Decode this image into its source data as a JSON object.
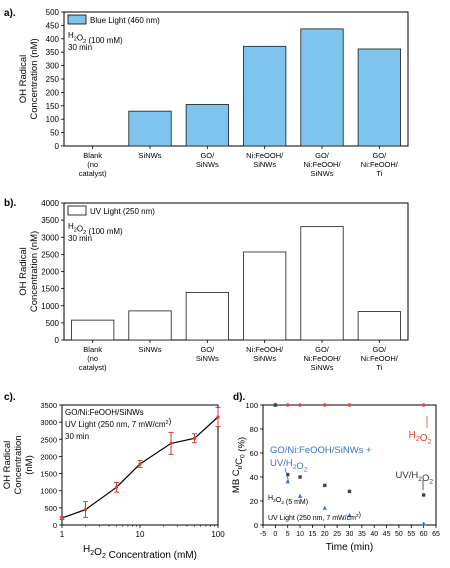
{
  "panel_labels": [
    "a).",
    "b).",
    "c).",
    "d)."
  ],
  "chart_data": [
    {
      "id": "a",
      "type": "bar",
      "ylabel": [
        "OH Radical",
        "Concentration (nM)"
      ],
      "ylim": [
        0,
        500
      ],
      "yticks": [
        0,
        50,
        100,
        150,
        200,
        250,
        300,
        350,
        400,
        450,
        500
      ],
      "categories": [
        [
          "Blank",
          "(no",
          "catalyst)"
        ],
        [
          "SiNWs"
        ],
        [
          "GO/",
          "SiNWs"
        ],
        [
          "Ni:FeOOH/",
          "SiNWs"
        ],
        [
          "GO/",
          "Ni:FeOOH/",
          "SiNWs"
        ],
        [
          "GO/",
          "Ni:FeOOH/",
          "Ti"
        ]
      ],
      "values": [
        0,
        130,
        155,
        372,
        437,
        362
      ],
      "legend": "Blue Light (460 nm)",
      "legend_position": "top-left",
      "annotations": [
        "H2O2 (100 mM)",
        "30 min"
      ],
      "colors": {
        "bar_fill": "#7dc5ee",
        "bar_stroke": "#1a1a1a"
      }
    },
    {
      "id": "b",
      "type": "bar",
      "ylabel": [
        "OH Radical",
        "Concentration (nM)"
      ],
      "ylim": [
        0,
        4000
      ],
      "yticks": [
        0,
        500,
        1000,
        1500,
        2000,
        2500,
        3000,
        3500,
        4000
      ],
      "categories": [
        [
          "Blank",
          "(no",
          "catalyst)"
        ],
        [
          "SiNWs"
        ],
        [
          "GO/",
          "SiNWs"
        ],
        [
          "Ni:FeOOH/",
          "SiNWs"
        ],
        [
          "GO/",
          "Ni:FeOOH/",
          "SiNWs"
        ],
        [
          "GO/",
          "Ni:FeOOH/",
          "Ti"
        ]
      ],
      "values": [
        580,
        850,
        1390,
        2570,
        3310,
        830
      ],
      "legend": "UV Light (250 nm)",
      "legend_position": "top-left",
      "annotations": [
        "H2O2 (100 mM)",
        "30 min"
      ],
      "colors": {
        "bar_fill": "#ffffff",
        "bar_stroke": "#1a1a1a"
      }
    },
    {
      "id": "c",
      "type": "line",
      "xscale": "log",
      "xlabel": "H2O2 Concentration (mM)",
      "ylabel": [
        "OH Radical",
        "Concentration",
        "(nM)"
      ],
      "xlim": [
        1,
        100
      ],
      "ylim": [
        0,
        3500
      ],
      "xticks": [
        1,
        10,
        100
      ],
      "yticks": [
        0,
        500,
        1000,
        1500,
        2000,
        2500,
        3000,
        3500
      ],
      "x": [
        1,
        2,
        5,
        10,
        25,
        50,
        100
      ],
      "y": [
        200,
        450,
        1100,
        1780,
        2380,
        2530,
        3150
      ],
      "err": [
        40,
        230,
        140,
        100,
        320,
        130,
        280
      ],
      "annotations": [
        "GO/Ni:FeOOH/SiNWs",
        "UV Light (250 nm, 7 mW/cm2)",
        "30 min"
      ],
      "colors": {
        "line": "#000000",
        "error": "#d93a3a"
      }
    },
    {
      "id": "d",
      "type": "scatter",
      "xlabel": "Time (min)",
      "ylabel": "MB Ct/C0 (%)",
      "xlim": [
        -5,
        65
      ],
      "ylim": [
        0,
        100
      ],
      "xticks": [
        -5,
        0,
        5,
        10,
        15,
        20,
        25,
        30,
        35,
        40,
        45,
        50,
        55,
        60,
        65
      ],
      "yticks": [
        0,
        20,
        40,
        60,
        80,
        100
      ],
      "series": [
        {
          "name": "H2O2",
          "marker": "circle",
          "color": "#e8443a",
          "x": [
            0,
            5,
            10,
            20,
            30,
            60
          ],
          "y": [
            100,
            100,
            100,
            100,
            100,
            100
          ]
        },
        {
          "name": "GO/Ni:FeOOH/SiNWs + UV/H2O2",
          "marker": "triangle",
          "color": "#3a73c4",
          "x": [
            0,
            5,
            10,
            20,
            30,
            60
          ],
          "y": [
            100,
            36,
            24,
            14,
            8,
            1
          ]
        },
        {
          "name": "UV/H2O2",
          "marker": "square",
          "color": "#444444",
          "x": [
            0,
            5,
            10,
            20,
            30,
            60
          ],
          "y": [
            100,
            42,
            40,
            33,
            28,
            25
          ]
        }
      ],
      "annotations": [
        "H2O2 (5 mM)",
        "UV Light (250 nm, 7 mW/cm2)"
      ]
    }
  ]
}
